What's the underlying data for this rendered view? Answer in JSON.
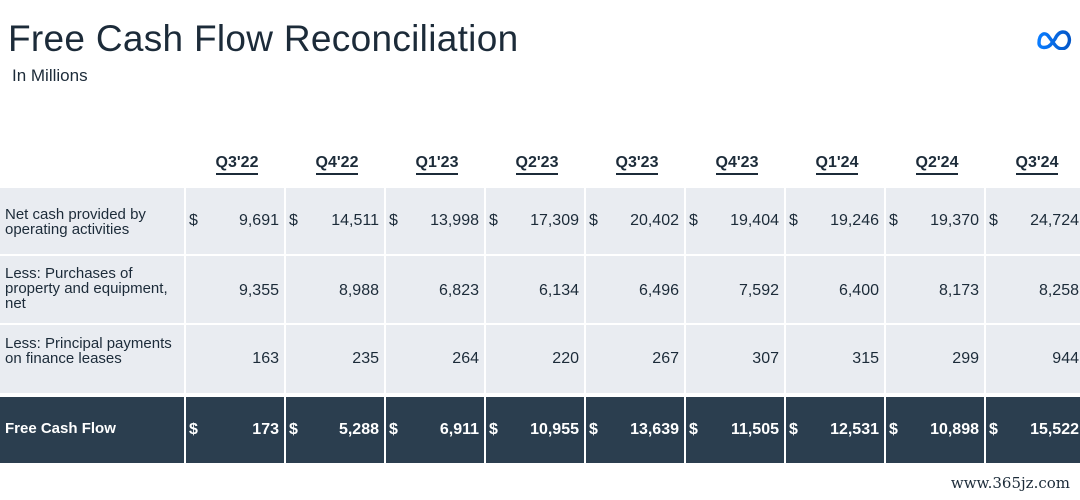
{
  "header": {
    "title": "Free Cash Flow Reconciliation",
    "subtitle": "In Millions",
    "logo_icon": "meta-infinity-logo"
  },
  "colors": {
    "text": "#1c2b39",
    "row_bg": "#e9ecf1",
    "total_bg": "#2b3e4f",
    "logo_blue": "#0668e1"
  },
  "table": {
    "columns": [
      "Q3'22",
      "Q4'22",
      "Q1'23",
      "Q2'23",
      "Q3'23",
      "Q4'23",
      "Q1'24",
      "Q2'24",
      "Q3'24"
    ],
    "rows": [
      {
        "label": "Net cash provided by operating activities",
        "currency": "$",
        "values": [
          "9,691",
          "14,511",
          "13,998",
          "17,309",
          "20,402",
          "19,404",
          "19,246",
          "19,370",
          "24,724"
        ]
      },
      {
        "label": "Less: Purchases of property and equipment, net",
        "currency": "",
        "values": [
          "9,355",
          "8,988",
          "6,823",
          "6,134",
          "6,496",
          "7,592",
          "6,400",
          "8,173",
          "8,258"
        ]
      },
      {
        "label": "Less: Principal payments on finance leases",
        "currency": "",
        "values": [
          "163",
          "235",
          "264",
          "220",
          "267",
          "307",
          "315",
          "299",
          "944"
        ]
      }
    ],
    "total": {
      "label": "Free Cash Flow",
      "currency": "$",
      "values": [
        "173",
        "5,288",
        "6,911",
        "10,955",
        "13,639",
        "11,505",
        "12,531",
        "10,898",
        "15,522"
      ]
    }
  },
  "watermark": "www.365jz.com"
}
